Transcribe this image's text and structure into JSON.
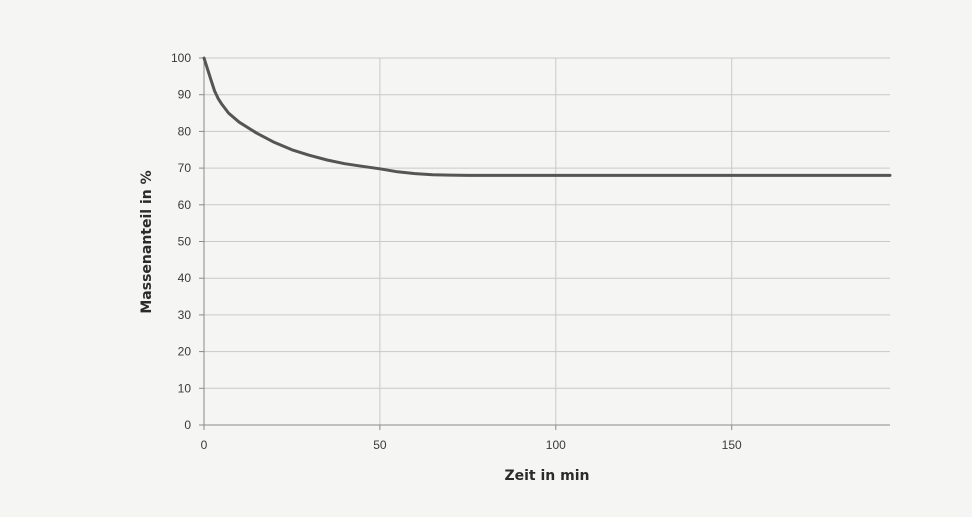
{
  "chart_data": {
    "type": "line",
    "xlabel": "Zeit in min",
    "ylabel": "Massenanteil in %",
    "xlim": [
      0,
      195
    ],
    "ylim": [
      0,
      100
    ],
    "xticks": [
      0,
      50,
      100,
      150
    ],
    "yticks": [
      0,
      10,
      20,
      30,
      40,
      50,
      60,
      70,
      80,
      90,
      100
    ],
    "grid": true,
    "legend": "none",
    "line_color": "#555555",
    "series": [
      {
        "x": [
          0,
          1,
          2,
          3,
          4,
          5,
          7,
          10,
          15,
          20,
          25,
          30,
          35,
          40,
          45,
          50,
          55,
          60,
          65,
          70,
          75,
          80,
          90,
          100,
          120,
          140,
          160,
          180,
          195
        ],
        "y": [
          100,
          97,
          94,
          91,
          89,
          87.5,
          85,
          82.5,
          79.5,
          77,
          75,
          73.5,
          72.2,
          71.2,
          70.5,
          69.8,
          69,
          68.5,
          68.2,
          68.1,
          68,
          68,
          68,
          68,
          68,
          68,
          68,
          68,
          68
        ]
      }
    ]
  }
}
